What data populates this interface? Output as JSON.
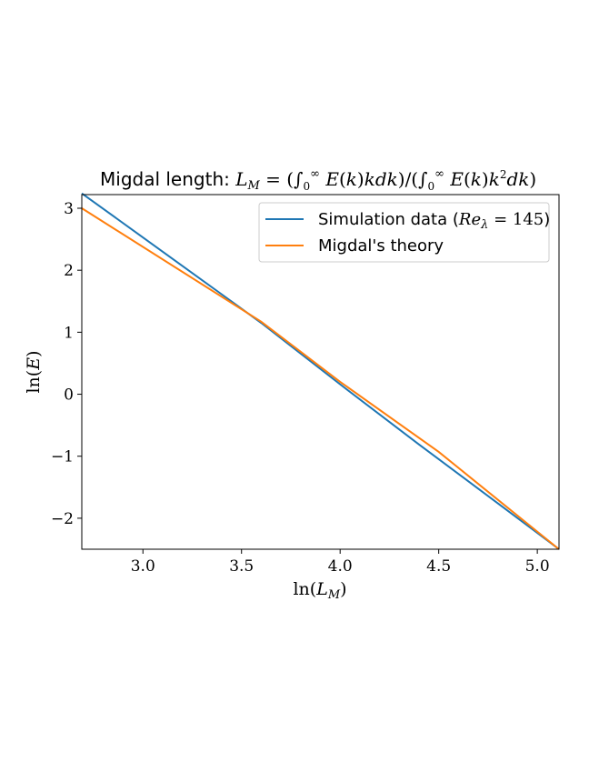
{
  "chart_data": {
    "type": "line",
    "title": "Migdal length:  L_M = (∫₀^∞ E(k)kdk)/(∫₀^∞ E(k)k²dk)",
    "xlabel": "ln(L_M)",
    "ylabel": "ln(E)",
    "xlim": [
      2.69,
      5.11
    ],
    "ylim": [
      -2.5,
      3.22
    ],
    "xticks": [
      3.0,
      3.5,
      4.0,
      4.5,
      5.0
    ],
    "xtick_labels": [
      "3.0",
      "3.5",
      "4.0",
      "4.5",
      "5.0"
    ],
    "yticks": [
      3,
      2,
      1,
      0,
      -1,
      -2
    ],
    "ytick_labels": [
      "3",
      "2",
      "1",
      "0",
      "−1",
      "−2"
    ],
    "grid": false,
    "legend_position": "top-right",
    "series": [
      {
        "name": "Simulation data (Re_λ = 145)",
        "color": "#1f77b4",
        "x": [
          2.69,
          3.2,
          3.6,
          4.0,
          4.4,
          4.8,
          5.11
        ],
        "y": [
          3.24,
          2.07,
          1.15,
          0.16,
          -0.81,
          -1.76,
          -2.5
        ]
      },
      {
        "name": "Migdal's theory",
        "color": "#ff7f0e",
        "x": [
          2.69,
          3.6,
          4.0,
          4.5,
          5.11
        ],
        "y": [
          3.0,
          1.17,
          0.2,
          -0.93,
          -2.5
        ]
      }
    ]
  }
}
